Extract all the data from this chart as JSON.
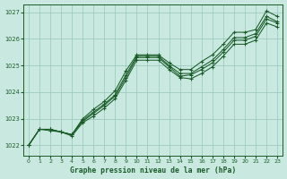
{
  "title": "Graphe pression niveau de la mer (hPa)",
  "bg_color": "#c8e8e0",
  "line_color": "#1a5c28",
  "grid_color": "#a0ccc0",
  "text_color": "#1a5c28",
  "ylim": [
    1021.6,
    1027.3
  ],
  "xlim": [
    -0.5,
    23.5
  ],
  "yticks": [
    1022,
    1023,
    1024,
    1025,
    1026,
    1027
  ],
  "ytick_labels": [
    "1022",
    "1023",
    "1024",
    "1025",
    "1026",
    "1027"
  ],
  "xticks": [
    0,
    1,
    2,
    3,
    4,
    5,
    6,
    7,
    8,
    9,
    10,
    11,
    12,
    13,
    14,
    15,
    16,
    17,
    18,
    19,
    20,
    21,
    22,
    23
  ],
  "series": [
    [
      1022.0,
      1022.6,
      1022.6,
      1022.5,
      1022.4,
      1022.9,
      1023.2,
      1023.5,
      1023.85,
      1024.55,
      1025.3,
      1025.3,
      1025.3,
      1024.95,
      1024.6,
      1024.65,
      1024.85,
      1025.1,
      1025.5,
      1025.95,
      1025.95,
      1026.1,
      1026.75,
      1026.6
    ],
    [
      1022.0,
      1022.6,
      1022.6,
      1022.5,
      1022.4,
      1023.0,
      1023.35,
      1023.65,
      1024.05,
      1024.8,
      1025.4,
      1025.4,
      1025.4,
      1025.1,
      1024.85,
      1024.85,
      1025.15,
      1025.4,
      1025.8,
      1026.25,
      1026.25,
      1026.35,
      1027.05,
      1026.85
    ],
    [
      1022.0,
      1022.6,
      1022.55,
      1022.5,
      1022.35,
      1022.85,
      1023.1,
      1023.4,
      1023.75,
      1024.45,
      1025.2,
      1025.2,
      1025.2,
      1024.85,
      1024.55,
      1024.5,
      1024.7,
      1024.95,
      1025.35,
      1025.8,
      1025.8,
      1025.95,
      1026.6,
      1026.45
    ],
    [
      1022.0,
      1022.6,
      1022.6,
      1022.5,
      1022.4,
      1022.95,
      1023.25,
      1023.55,
      1023.9,
      1024.65,
      1025.35,
      1025.35,
      1025.35,
      1025.0,
      1024.7,
      1024.7,
      1024.95,
      1025.2,
      1025.6,
      1026.05,
      1026.05,
      1026.2,
      1026.85,
      1026.65
    ]
  ]
}
